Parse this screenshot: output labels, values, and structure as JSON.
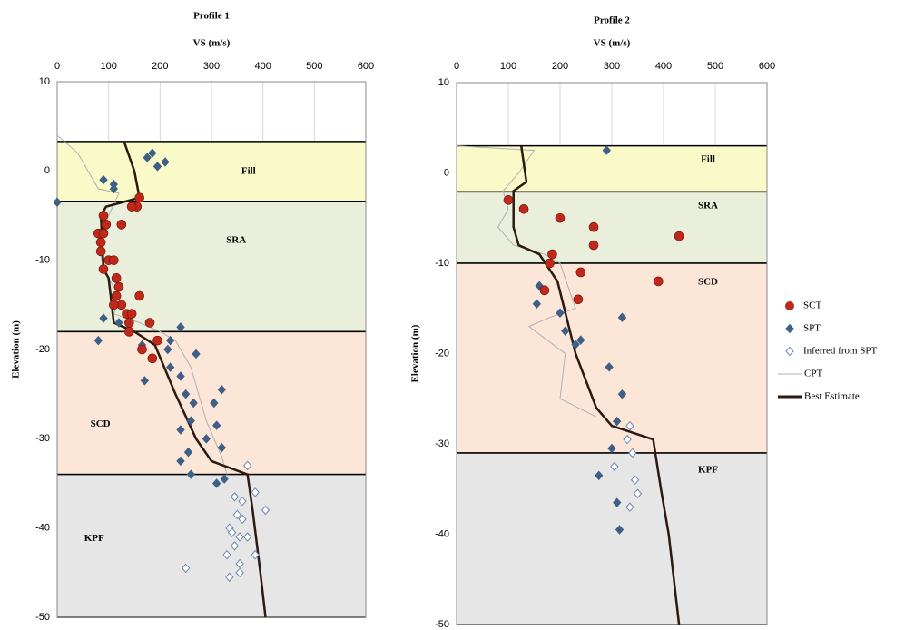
{
  "chart_data": [
    {
      "type": "scatter",
      "title": "Profile 1",
      "x_label": "VS (m/s)",
      "y_label": "Elevation  (m)",
      "xlim": [
        0,
        600
      ],
      "xticks": [
        0,
        100,
        200,
        300,
        400,
        500,
        600
      ],
      "ylim": [
        -50,
        10
      ],
      "yticks": [
        10,
        0,
        -10,
        -20,
        -30,
        -40,
        -50
      ],
      "grid": true,
      "legend": false,
      "layers": [
        {
          "name": "Fill",
          "top": 3.3,
          "bottom": -3.4,
          "color": "#fafac8"
        },
        {
          "name": "SRA",
          "top": -3.4,
          "bottom": -18,
          "color": "#e9efda"
        },
        {
          "name": "SCD",
          "top": -18,
          "bottom": -34,
          "color": "#fbe6d8"
        },
        {
          "name": "KPF",
          "top": -34,
          "bottom": -50,
          "color": "#e6e6e6"
        }
      ],
      "series": [
        {
          "name": "CPT",
          "kind": "line",
          "color": "#b0b0b0",
          "x": [
            0,
            40,
            60,
            80,
            120,
            100,
            80,
            90,
            120,
            110,
            160,
            200,
            230,
            260,
            290,
            320,
            330
          ],
          "values": [
            4,
            2,
            0,
            -2,
            -2.5,
            -5,
            -8,
            -11,
            -14,
            -16,
            -17,
            -18,
            -19,
            -22,
            -28,
            -32,
            -34
          ]
        },
        {
          "name": "SCT",
          "kind": "circle",
          "color": "#c0281a",
          "x": [
            160,
            155,
            145,
            125,
            90,
            95,
            80,
            90,
            85,
            85,
            100,
            110,
            90,
            115,
            120,
            115,
            125,
            110,
            135,
            145,
            140,
            160,
            180,
            140,
            195,
            165,
            185
          ],
          "values": [
            -3,
            -4,
            -4,
            -6,
            -5,
            -6,
            -7,
            -7,
            -8,
            -9,
            -10,
            -10,
            -11,
            -12,
            -13,
            -14,
            -15,
            -15,
            -16,
            -16,
            -17,
            -14,
            -17,
            -18,
            -19,
            -20,
            -21
          ]
        },
        {
          "name": "SPT",
          "kind": "diamond",
          "color": "#3f5f86",
          "x": [
            185,
            175,
            210,
            195,
            90,
            110,
            110,
            0,
            90,
            80,
            120,
            165,
            220,
            240,
            215,
            270,
            220,
            170,
            240,
            250,
            265,
            320,
            305,
            310,
            260,
            240,
            290,
            320,
            255,
            240,
            260,
            310,
            325
          ],
          "values": [
            2,
            1.5,
            1,
            0.5,
            -1,
            -1.5,
            -2,
            -3.5,
            -16.5,
            -19,
            -17,
            -19.5,
            -19,
            -17.5,
            -20,
            -20.5,
            -22,
            -23.5,
            -23,
            -25,
            -26,
            -24.5,
            -26,
            -28.5,
            -28,
            -29,
            -30,
            -31,
            -31.5,
            -32.5,
            -34,
            -35,
            -34.5
          ]
        },
        {
          "name": "Inferred from SPT",
          "kind": "open-diamond",
          "color": "#6b86b0",
          "x": [
            370,
            385,
            345,
            360,
            405,
            350,
            360,
            335,
            340,
            355,
            370,
            330,
            345,
            355,
            385,
            250,
            335,
            355
          ],
          "values": [
            -33,
            -36,
            -36.5,
            -37,
            -38,
            -38.5,
            -39,
            -40,
            -40.5,
            -41,
            -41,
            -43,
            -42,
            -44,
            -43,
            -44.5,
            -45.5,
            -45
          ]
        },
        {
          "name": "Best Estimate",
          "kind": "thick-line",
          "color": "#2a1a10",
          "x": [
            130,
            150,
            160,
            95,
            85,
            90,
            100,
            110,
            150,
            190,
            230,
            270,
            300,
            370,
            380,
            395,
            405
          ],
          "values": [
            3.3,
            0,
            -3,
            -4,
            -5,
            -11,
            -12,
            -17,
            -18,
            -19.5,
            -25,
            -30,
            -32.5,
            -34,
            -38,
            -45,
            -50
          ]
        }
      ]
    },
    {
      "type": "scatter",
      "title": "Profile 2",
      "x_label": "VS (m/s)",
      "y_label": "Elevation  (m)",
      "xlim": [
        0,
        600
      ],
      "xticks": [
        0,
        100,
        200,
        300,
        400,
        500,
        600
      ],
      "ylim": [
        -50,
        10
      ],
      "yticks": [
        10,
        0,
        -10,
        -20,
        -30,
        -40,
        -50
      ],
      "grid": true,
      "legend": "right",
      "layers": [
        {
          "name": "Fill",
          "top": 3,
          "bottom": -2.1,
          "color": "#fafac8"
        },
        {
          "name": "SRA",
          "top": -2.1,
          "bottom": -10,
          "color": "#e9efda"
        },
        {
          "name": "SCD",
          "top": -10,
          "bottom": -31,
          "color": "#fbe6d8"
        },
        {
          "name": "KPF",
          "top": -31,
          "bottom": -50,
          "color": "#e6e6e6"
        }
      ],
      "series": [
        {
          "name": "SCT",
          "kind": "circle",
          "color": "#c0281a",
          "x": [
            100,
            130,
            200,
            265,
            265,
            430,
            185,
            180,
            240,
            390,
            170,
            235
          ],
          "values": [
            -3,
            -4,
            -5,
            -6,
            -8,
            -7,
            -9,
            -10,
            -11,
            -12,
            -13,
            -14
          ]
        },
        {
          "name": "SPT",
          "kind": "diamond",
          "color": "#3f5f86",
          "x": [
            290,
            160,
            155,
            200,
            320,
            240,
            230,
            210,
            295,
            320,
            310,
            300,
            275,
            310,
            315
          ],
          "values": [
            2.5,
            -12.5,
            -14.5,
            -15.5,
            -16,
            -18.5,
            -19,
            -17.5,
            -21.5,
            -24.5,
            -27.5,
            -30.5,
            -33.5,
            -36.5,
            -39.5
          ]
        },
        {
          "name": "Inferred from SPT",
          "kind": "open-diamond",
          "color": "#6b86b0",
          "x": [
            335,
            330,
            340,
            305,
            345,
            350,
            335
          ],
          "values": [
            -28,
            -29.5,
            -31,
            -32.5,
            -34,
            -35.5,
            -37
          ]
        },
        {
          "name": "CPT",
          "kind": "line",
          "color": "#b0b0b0",
          "x": [
            0,
            150,
            120,
            90,
            100,
            80,
            110,
            170,
            200,
            230,
            180,
            140,
            210,
            200,
            270
          ],
          "values": [
            3,
            2.5,
            0,
            -2,
            -4,
            -6,
            -8,
            -9,
            -10,
            -15,
            -16,
            -17,
            -20,
            -25,
            -27
          ]
        },
        {
          "name": "Best Estimate",
          "kind": "thick-line",
          "color": "#2a1a10",
          "x": [
            125,
            135,
            110,
            110,
            120,
            160,
            195,
            230,
            270,
            300,
            380,
            395,
            410,
            420,
            430
          ],
          "values": [
            3,
            -1,
            -2,
            -6,
            -8,
            -9,
            -12,
            -20,
            -26,
            -28,
            -29.5,
            -35,
            -40,
            -45,
            -50
          ]
        }
      ]
    }
  ]
}
